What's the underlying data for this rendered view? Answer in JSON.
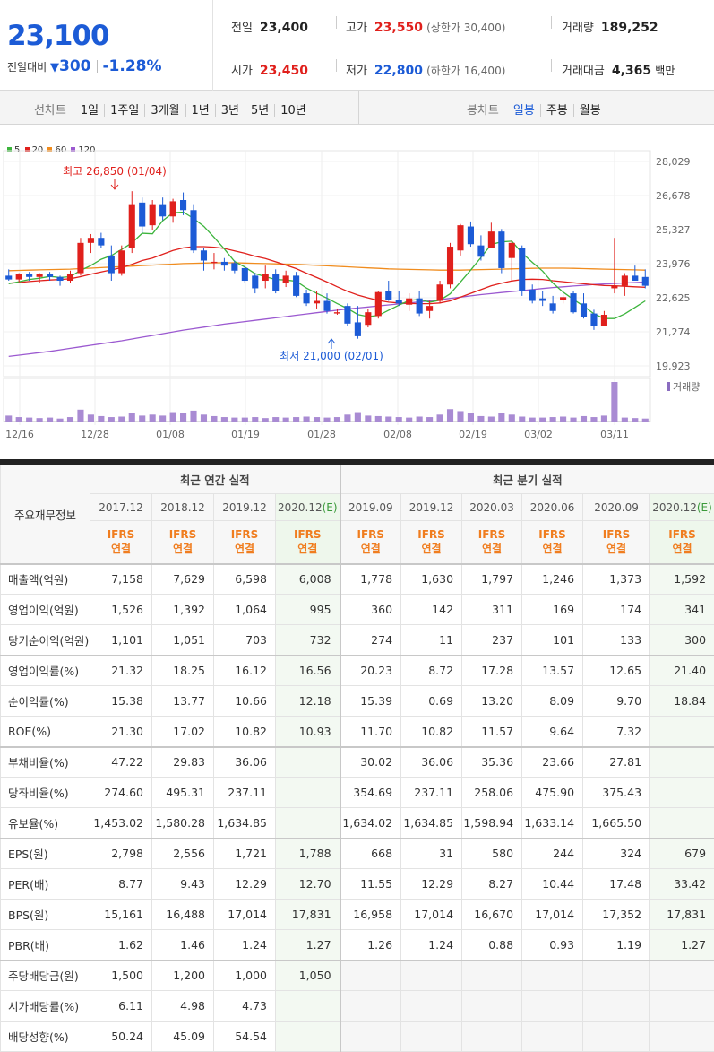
{
  "quote": {
    "price": "23,100",
    "change_label": "전일대비",
    "change_arrow": "▼",
    "change_value": "300",
    "change_pct": "-1.28%",
    "prev_label": "전일",
    "prev_value": "23,400",
    "high_label": "고가",
    "high_value": "23,550",
    "upper_limit": "(상한가 30,400)",
    "volume_label": "거래량",
    "volume_value": "189,252",
    "open_label": "시가",
    "open_value": "23,450",
    "low_label": "저가",
    "low_value": "22,800",
    "lower_limit": "(하한가 16,400)",
    "amount_label": "거래대금",
    "amount_value": "4,365",
    "amount_unit": "백만"
  },
  "period_bar": {
    "line_label": "선차트",
    "line_items": [
      "1일",
      "1주일",
      "3개월",
      "1년",
      "3년",
      "5년",
      "10년"
    ],
    "candle_label": "봉차트",
    "candle_items": [
      "일봉",
      "주봉",
      "월봉"
    ],
    "candle_active": "일봉"
  },
  "chart_data": {
    "type": "candlestick",
    "legend": [
      {
        "name": "5",
        "color": "#3cb43c"
      },
      {
        "name": "20",
        "color": "#e0201c"
      },
      {
        "name": "60",
        "color": "#f08c1e"
      },
      {
        "name": "120",
        "color": "#9b59d0"
      }
    ],
    "y_ticks": [
      "28,029",
      "26,678",
      "25,327",
      "23,976",
      "22,625",
      "21,274",
      "19,923"
    ],
    "ylim": [
      19923,
      28029
    ],
    "x_ticks": [
      "12/16",
      "12/28",
      "01/08",
      "01/19",
      "01/28",
      "02/08",
      "02/19",
      "03/02",
      "03/11"
    ],
    "high_annotation": "최고 26,850 (01/04)",
    "low_annotation": "최저 21,000 (02/01)",
    "volume_label": "거래량",
    "candles": [
      [
        23500,
        23750,
        23300,
        23350
      ],
      [
        23350,
        23600,
        23250,
        23550
      ],
      [
        23550,
        23650,
        23300,
        23450
      ],
      [
        23450,
        23600,
        23200,
        23550
      ],
      [
        23550,
        23650,
        23300,
        23450
      ],
      [
        23450,
        23500,
        23100,
        23300
      ],
      [
        23300,
        23700,
        23200,
        23550
      ],
      [
        23600,
        25000,
        23500,
        24800
      ],
      [
        24800,
        25150,
        24400,
        25000
      ],
      [
        25000,
        25200,
        24600,
        24700
      ],
      [
        24300,
        24700,
        23300,
        23600
      ],
      [
        23600,
        24700,
        23500,
        24500
      ],
      [
        24600,
        26850,
        24400,
        26300
      ],
      [
        26400,
        26600,
        25200,
        25450
      ],
      [
        25500,
        26500,
        25300,
        26300
      ],
      [
        26300,
        26600,
        25700,
        25850
      ],
      [
        25850,
        26550,
        25600,
        26450
      ],
      [
        26500,
        26800,
        25900,
        26100
      ],
      [
        26100,
        26300,
        24400,
        24500
      ],
      [
        24500,
        24600,
        23700,
        24100
      ],
      [
        24000,
        24400,
        23750,
        24050
      ],
      [
        24050,
        24200,
        23700,
        23900
      ],
      [
        24000,
        24100,
        23600,
        23700
      ],
      [
        23800,
        23900,
        23200,
        23300
      ],
      [
        23500,
        23600,
        22800,
        23000
      ],
      [
        23300,
        23900,
        23000,
        23550
      ],
      [
        23550,
        23750,
        22800,
        22900
      ],
      [
        23200,
        23700,
        23050,
        23500
      ],
      [
        23500,
        23650,
        22650,
        22700
      ],
      [
        22800,
        22950,
        22300,
        22400
      ],
      [
        22400,
        22900,
        22200,
        22500
      ],
      [
        22500,
        22800,
        22000,
        22100
      ],
      [
        22000,
        22200,
        21950,
        22050
      ],
      [
        22300,
        22400,
        21500,
        21600
      ],
      [
        21650,
        22300,
        21000,
        21100
      ],
      [
        21550,
        22200,
        21450,
        22050
      ],
      [
        21900,
        22900,
        21800,
        22850
      ],
      [
        22900,
        23300,
        22500,
        22550
      ],
      [
        22550,
        22900,
        22300,
        22400
      ],
      [
        22350,
        22800,
        22100,
        22600
      ],
      [
        22600,
        22900,
        21900,
        22000
      ],
      [
        22100,
        22500,
        21800,
        22300
      ],
      [
        22500,
        23300,
        22400,
        23150
      ],
      [
        23150,
        24800,
        23000,
        24650
      ],
      [
        24500,
        25550,
        24300,
        25500
      ],
      [
        25450,
        25650,
        24650,
        24750
      ],
      [
        24700,
        25100,
        24100,
        24250
      ],
      [
        24600,
        25600,
        24600,
        25250
      ],
      [
        25250,
        25350,
        23600,
        23800
      ],
      [
        24200,
        24900,
        23300,
        24800
      ],
      [
        24600,
        24700,
        22700,
        22900
      ],
      [
        22950,
        23150,
        22400,
        22500
      ],
      [
        22600,
        22900,
        22300,
        22500
      ],
      [
        22400,
        22700,
        22000,
        22100
      ],
      [
        22550,
        22750,
        22400,
        22650
      ],
      [
        22800,
        22900,
        22000,
        22050
      ],
      [
        22400,
        22800,
        21800,
        21850
      ],
      [
        22000,
        22150,
        21350,
        21500
      ],
      [
        21500,
        22100,
        21500,
        21950
      ],
      [
        23000,
        25000,
        22800,
        23100
      ],
      [
        23100,
        23600,
        22700,
        23500
      ],
      [
        23500,
        23900,
        23300,
        23300
      ],
      [
        23450,
        23750,
        23000,
        23100
      ]
    ],
    "ma5": [
      23180,
      23260,
      23350,
      23400,
      23470,
      23430,
      23460,
      23710,
      23900,
      24150,
      24300,
      24540,
      24800,
      25180,
      25160,
      25680,
      26000,
      26020,
      25770,
      25460,
      25020,
      24560,
      24060,
      23840,
      23580,
      23460,
      23350,
      23330,
      23280,
      23010,
      22800,
      22610,
      22390,
      22200,
      21960,
      21880,
      21920,
      22130,
      22330,
      22520,
      22560,
      22450,
      22530,
      22780,
      23250,
      23720,
      24220,
      24740,
      24840,
      24870,
      24400,
      24030,
      23680,
      23210,
      22850,
      22560,
      22290,
      21990,
      21800,
      21800,
      21980,
      22240,
      22500
    ],
    "ma20": [
      23200,
      23230,
      23270,
      23300,
      23330,
      23350,
      23380,
      23460,
      23560,
      23650,
      23730,
      23820,
      23950,
      24100,
      24200,
      24350,
      24500,
      24600,
      24650,
      24650,
      24630,
      24580,
      24480,
      24390,
      24270,
      24180,
      24050,
      23920,
      23780,
      23600,
      23430,
      23250,
      23060,
      22880,
      22730,
      22620,
      22520,
      22450,
      22420,
      22400,
      22390,
      22390,
      22420,
      22500,
      22650,
      22800,
      22950,
      23100,
      23200,
      23290,
      23350,
      23360,
      23350,
      23300,
      23260,
      23220,
      23180,
      23140,
      23110,
      23100,
      23080,
      23060,
      23040
    ],
    "ma60": [
      23700,
      23710,
      23720,
      23730,
      23740,
      23750,
      23760,
      23780,
      23800,
      23820,
      23840,
      23860,
      23880,
      23900,
      23920,
      23940,
      23960,
      23980,
      23990,
      24000,
      24010,
      24010,
      24010,
      24000,
      23990,
      23980,
      23970,
      23960,
      23950,
      23930,
      23910,
      23890,
      23870,
      23850,
      23830,
      23810,
      23790,
      23770,
      23760,
      23750,
      23740,
      23730,
      23720,
      23720,
      23720,
      23730,
      23740,
      23750,
      23760,
      23770,
      23780,
      23790,
      23800,
      23800,
      23800,
      23790,
      23780,
      23770,
      23760,
      23750,
      23740,
      23730,
      23720
    ],
    "ma120": [
      20300,
      20350,
      20400,
      20450,
      20500,
      20560,
      20620,
      20680,
      20740,
      20800,
      20860,
      20920,
      20990,
      21060,
      21130,
      21200,
      21270,
      21340,
      21400,
      21460,
      21520,
      21580,
      21630,
      21680,
      21730,
      21780,
      21830,
      21880,
      21930,
      21980,
      22030,
      22080,
      22130,
      22180,
      22220,
      22260,
      22300,
      22340,
      22380,
      22420,
      22460,
      22500,
      22550,
      22600,
      22650,
      22700,
      22750,
      22790,
      22830,
      22870,
      22910,
      22950,
      22990,
      23030,
      23060,
      23090,
      23120,
      23150,
      23170,
      23190,
      23210,
      23230,
      23250
    ],
    "volumes": [
      12,
      9,
      8,
      7,
      8,
      6,
      9,
      24,
      14,
      11,
      9,
      10,
      18,
      12,
      14,
      12,
      19,
      17,
      22,
      14,
      11,
      9,
      8,
      8,
      9,
      7,
      9,
      8,
      9,
      10,
      9,
      8,
      9,
      14,
      19,
      12,
      11,
      10,
      9,
      8,
      10,
      9,
      14,
      25,
      21,
      18,
      11,
      10,
      17,
      14,
      10,
      8,
      8,
      9,
      10,
      8,
      11,
      9,
      12,
      80,
      8,
      7,
      6
    ]
  },
  "fin_table": {
    "row_header_title": "주요재무정보",
    "annual_title": "최근 연간 실적",
    "quarter_title": "최근 분기 실적",
    "periods": [
      "2017.12",
      "2018.12",
      "2019.12",
      "2020.12",
      "2019.09",
      "2019.12",
      "2020.03",
      "2020.06",
      "2020.09",
      "2020.12"
    ],
    "estimate_mark": "(E)",
    "basis_line1": "IFRS",
    "basis_line2": "연결",
    "rows": [
      {
        "label": "매출액(억원)",
        "values": [
          "7,158",
          "7,629",
          "6,598",
          "6,008",
          "1,778",
          "1,630",
          "1,797",
          "1,246",
          "1,373",
          "1,592"
        ]
      },
      {
        "label": "영업이익(억원)",
        "values": [
          "1,526",
          "1,392",
          "1,064",
          "995",
          "360",
          "142",
          "311",
          "169",
          "174",
          "341"
        ]
      },
      {
        "label": "당기순이익(억원)",
        "values": [
          "1,101",
          "1,051",
          "703",
          "732",
          "274",
          "11",
          "237",
          "101",
          "133",
          "300"
        ]
      },
      {
        "label": "영업이익률(%)",
        "values": [
          "21.32",
          "18.25",
          "16.12",
          "16.56",
          "20.23",
          "8.72",
          "17.28",
          "13.57",
          "12.65",
          "21.40"
        ]
      },
      {
        "label": "순이익률(%)",
        "values": [
          "15.38",
          "13.77",
          "10.66",
          "12.18",
          "15.39",
          "0.69",
          "13.20",
          "8.09",
          "9.70",
          "18.84"
        ]
      },
      {
        "label": "ROE(%)",
        "values": [
          "21.30",
          "17.02",
          "10.82",
          "10.93",
          "11.70",
          "10.82",
          "11.57",
          "9.64",
          "7.32",
          ""
        ]
      },
      {
        "label": "부채비율(%)",
        "values": [
          "47.22",
          "29.83",
          "36.06",
          "",
          "30.02",
          "36.06",
          "35.36",
          "23.66",
          "27.81",
          ""
        ]
      },
      {
        "label": "당좌비율(%)",
        "values": [
          "274.60",
          "495.31",
          "237.11",
          "",
          "354.69",
          "237.11",
          "258.06",
          "475.90",
          "375.43",
          ""
        ]
      },
      {
        "label": "유보율(%)",
        "values": [
          "1,453.02",
          "1,580.28",
          "1,634.85",
          "",
          "1,634.02",
          "1,634.85",
          "1,598.94",
          "1,633.14",
          "1,665.50",
          ""
        ]
      },
      {
        "label": "EPS(원)",
        "values": [
          "2,798",
          "2,556",
          "1,721",
          "1,788",
          "668",
          "31",
          "580",
          "244",
          "324",
          "679"
        ]
      },
      {
        "label": "PER(배)",
        "values": [
          "8.77",
          "9.43",
          "12.29",
          "12.70",
          "11.55",
          "12.29",
          "8.27",
          "10.44",
          "17.48",
          "33.42"
        ]
      },
      {
        "label": "BPS(원)",
        "values": [
          "15,161",
          "16,488",
          "17,014",
          "17,831",
          "16,958",
          "17,014",
          "16,670",
          "17,014",
          "17,352",
          "17,831"
        ]
      },
      {
        "label": "PBR(배)",
        "values": [
          "1.62",
          "1.46",
          "1.24",
          "1.27",
          "1.26",
          "1.24",
          "0.88",
          "0.93",
          "1.19",
          "1.27"
        ]
      },
      {
        "label": "주당배당금(원)",
        "values": [
          "1,500",
          "1,200",
          "1,000",
          "1,050",
          "",
          "",
          "",
          "",
          "",
          ""
        ]
      },
      {
        "label": "시가배당률(%)",
        "values": [
          "6.11",
          "4.98",
          "4.73",
          "",
          "",
          "",
          "",
          "",
          "",
          ""
        ]
      },
      {
        "label": "배당성향(%)",
        "values": [
          "50.24",
          "45.09",
          "54.54",
          "",
          "",
          "",
          "",
          "",
          "",
          ""
        ]
      }
    ]
  }
}
